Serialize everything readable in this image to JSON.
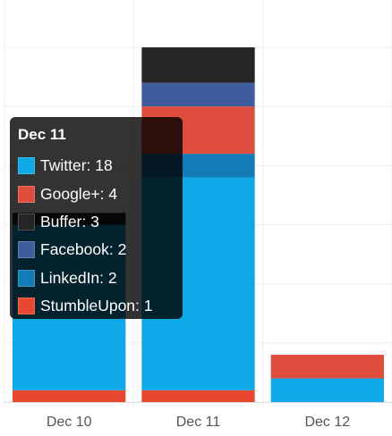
{
  "chart_data": {
    "type": "bar",
    "stacked": true,
    "categories": [
      "Dec 10",
      "Dec 11",
      "Dec 12"
    ],
    "ylim": [
      0,
      30
    ],
    "grid": true,
    "series": [
      {
        "name": "StumbleUpon",
        "color": "#E8482F",
        "values": [
          1,
          1,
          0
        ]
      },
      {
        "name": "Twitter",
        "color": "#0EA9E6",
        "values": [
          14,
          18,
          2
        ]
      },
      {
        "name": "LinkedIn",
        "color": "#137BB5",
        "values": [
          0,
          2,
          0
        ]
      },
      {
        "name": "Google+",
        "color": "#DF4D3D",
        "values": [
          0,
          4,
          2
        ]
      },
      {
        "name": "Facebook",
        "color": "#3F5D9C",
        "values": [
          0,
          2,
          0
        ]
      },
      {
        "name": "Buffer",
        "color": "#252525",
        "values": [
          1,
          3,
          0
        ]
      }
    ],
    "tooltip": {
      "title": "Dec 11",
      "entries": [
        {
          "label": "Twitter: 18",
          "color": "#0EA9E6"
        },
        {
          "label": "Google+: 4",
          "color": "#DF4D3D"
        },
        {
          "label": "Buffer: 3",
          "color": "#252525"
        },
        {
          "label": "Facebook: 2",
          "color": "#3F5D9C"
        },
        {
          "label": "LinkedIn: 2",
          "color": "#137BB5"
        },
        {
          "label": "StumbleUpon: 1",
          "color": "#E8482F"
        }
      ]
    }
  }
}
